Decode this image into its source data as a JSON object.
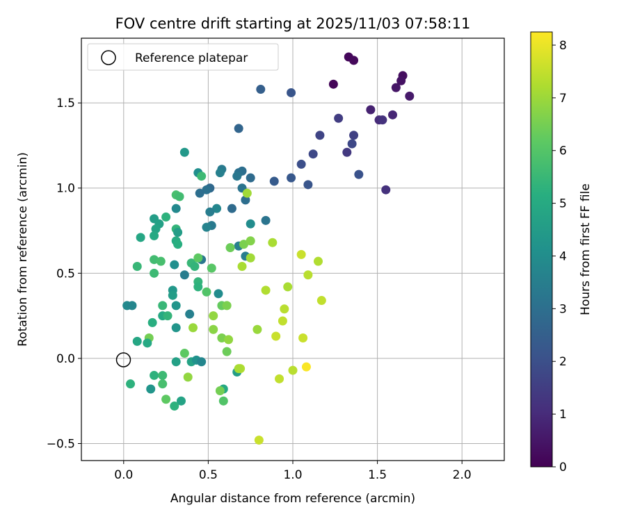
{
  "chart_data": {
    "type": "scatter",
    "title": "FOV centre drift starting at 2025/11/03 07:58:11",
    "xlabel": "Angular distance from reference (arcmin)",
    "ylabel": "Rotation from reference (arcmin)",
    "xlim": [
      -0.25,
      2.25
    ],
    "ylim": [
      -0.6,
      1.88
    ],
    "xticks": [
      0.0,
      0.5,
      1.0,
      1.5,
      2.0
    ],
    "xtick_labels": [
      "0.0",
      "0.5",
      "1.0",
      "1.5",
      "2.0"
    ],
    "yticks": [
      -0.5,
      0.0,
      0.5,
      1.0,
      1.5
    ],
    "ytick_labels": [
      "−0.5",
      "0.0",
      "0.5",
      "1.0",
      "1.5"
    ],
    "grid": true,
    "legend": {
      "location": "upper-left",
      "entries": [
        "Reference platepar"
      ]
    },
    "reference_point": {
      "x": 0.0,
      "y": 0.0
    },
    "colorbar": {
      "label": "Hours from first FF file",
      "colormap": "viridis",
      "range": [
        0,
        8.25
      ],
      "ticks": [
        0,
        1,
        2,
        3,
        4,
        5,
        6,
        7,
        8
      ],
      "tick_labels": [
        "0",
        "1",
        "2",
        "3",
        "4",
        "5",
        "6",
        "7",
        "8"
      ]
    },
    "points": [
      {
        "x": 1.33,
        "y": 1.77,
        "h": 0.15
      },
      {
        "x": 1.36,
        "y": 1.75,
        "h": 0.2
      },
      {
        "x": 1.24,
        "y": 1.61,
        "h": 0.1
      },
      {
        "x": 1.65,
        "y": 1.66,
        "h": 0.3
      },
      {
        "x": 1.64,
        "y": 1.63,
        "h": 0.4
      },
      {
        "x": 1.61,
        "y": 1.59,
        "h": 0.5
      },
      {
        "x": 1.69,
        "y": 1.54,
        "h": 0.6
      },
      {
        "x": 1.46,
        "y": 1.46,
        "h": 0.8
      },
      {
        "x": 1.59,
        "y": 1.43,
        "h": 0.9
      },
      {
        "x": 1.51,
        "y": 1.4,
        "h": 1.0
      },
      {
        "x": 1.53,
        "y": 1.4,
        "h": 1.2
      },
      {
        "x": 1.27,
        "y": 1.41,
        "h": 1.5
      },
      {
        "x": 1.36,
        "y": 1.31,
        "h": 1.6
      },
      {
        "x": 1.16,
        "y": 1.31,
        "h": 1.7
      },
      {
        "x": 1.35,
        "y": 1.26,
        "h": 1.8
      },
      {
        "x": 1.32,
        "y": 1.21,
        "h": 1.4
      },
      {
        "x": 1.12,
        "y": 1.2,
        "h": 1.8
      },
      {
        "x": 1.55,
        "y": 0.99,
        "h": 1.2
      },
      {
        "x": 1.39,
        "y": 1.08,
        "h": 2.1
      },
      {
        "x": 1.05,
        "y": 1.14,
        "h": 2.0
      },
      {
        "x": 1.09,
        "y": 1.02,
        "h": 2.2
      },
      {
        "x": 0.99,
        "y": 1.06,
        "h": 2.3
      },
      {
        "x": 0.89,
        "y": 1.04,
        "h": 2.4
      },
      {
        "x": 0.99,
        "y": 1.56,
        "h": 2.2
      },
      {
        "x": 0.81,
        "y": 1.58,
        "h": 2.5
      },
      {
        "x": 0.68,
        "y": 1.35,
        "h": 2.7
      },
      {
        "x": 0.75,
        "y": 1.06,
        "h": 2.9
      },
      {
        "x": 0.7,
        "y": 1.1,
        "h": 3.0
      },
      {
        "x": 0.68,
        "y": 1.09,
        "h": 3.1
      },
      {
        "x": 0.67,
        "y": 1.07,
        "h": 3.3
      },
      {
        "x": 0.7,
        "y": 1.0,
        "h": 3.2
      },
      {
        "x": 0.58,
        "y": 1.11,
        "h": 3.4
      },
      {
        "x": 0.57,
        "y": 1.09,
        "h": 3.6
      },
      {
        "x": 0.72,
        "y": 0.93,
        "h": 3.0
      },
      {
        "x": 0.64,
        "y": 0.88,
        "h": 2.9
      },
      {
        "x": 0.51,
        "y": 1.0,
        "h": 2.8
      },
      {
        "x": 0.49,
        "y": 0.99,
        "h": 3.1
      },
      {
        "x": 0.45,
        "y": 0.97,
        "h": 3.0
      },
      {
        "x": 0.84,
        "y": 0.81,
        "h": 3.2
      },
      {
        "x": 0.55,
        "y": 0.88,
        "h": 3.8
      },
      {
        "x": 0.51,
        "y": 0.86,
        "h": 3.5
      },
      {
        "x": 0.52,
        "y": 0.78,
        "h": 3.4
      },
      {
        "x": 0.49,
        "y": 0.77,
        "h": 3.7
      },
      {
        "x": 0.75,
        "y": 0.79,
        "h": 4.0
      },
      {
        "x": 0.68,
        "y": 0.66,
        "h": 3.6
      },
      {
        "x": 0.72,
        "y": 0.6,
        "h": 3.5
      },
      {
        "x": 0.46,
        "y": 0.58,
        "h": 3.3
      },
      {
        "x": 0.36,
        "y": 1.21,
        "h": 4.4
      },
      {
        "x": 0.44,
        "y": 1.09,
        "h": 4.1
      },
      {
        "x": 0.46,
        "y": 1.07,
        "h": 5.6
      },
      {
        "x": 0.31,
        "y": 0.88,
        "h": 3.9
      },
      {
        "x": 0.31,
        "y": 0.96,
        "h": 5.8
      },
      {
        "x": 0.33,
        "y": 0.95,
        "h": 5.7
      },
      {
        "x": 0.25,
        "y": 0.83,
        "h": 5.3
      },
      {
        "x": 0.18,
        "y": 0.82,
        "h": 4.6
      },
      {
        "x": 0.21,
        "y": 0.79,
        "h": 4.7
      },
      {
        "x": 0.19,
        "y": 0.76,
        "h": 4.8
      },
      {
        "x": 0.31,
        "y": 0.76,
        "h": 5.4
      },
      {
        "x": 0.32,
        "y": 0.74,
        "h": 4.6
      },
      {
        "x": 0.18,
        "y": 0.72,
        "h": 5.0
      },
      {
        "x": 0.1,
        "y": 0.71,
        "h": 4.9
      },
      {
        "x": 0.31,
        "y": 0.69,
        "h": 5.1
      },
      {
        "x": 0.32,
        "y": 0.67,
        "h": 5.2
      },
      {
        "x": 0.3,
        "y": 0.55,
        "h": 4.1
      },
      {
        "x": 0.36,
        "y": 0.49,
        "h": 3.5
      },
      {
        "x": 0.08,
        "y": 0.54,
        "h": 5.5
      },
      {
        "x": 0.18,
        "y": 0.58,
        "h": 5.7
      },
      {
        "x": 0.22,
        "y": 0.57,
        "h": 5.8
      },
      {
        "x": 0.4,
        "y": 0.56,
        "h": 5.5
      },
      {
        "x": 0.42,
        "y": 0.54,
        "h": 5.4
      },
      {
        "x": 0.44,
        "y": 0.59,
        "h": 6.2
      },
      {
        "x": 0.52,
        "y": 0.53,
        "h": 6.1
      },
      {
        "x": 0.63,
        "y": 0.65,
        "h": 6.4
      },
      {
        "x": 0.71,
        "y": 0.67,
        "h": 6.6
      },
      {
        "x": 0.75,
        "y": 0.69,
        "h": 6.7
      },
      {
        "x": 0.18,
        "y": 0.5,
        "h": 5.6
      },
      {
        "x": 0.44,
        "y": 0.45,
        "h": 5.4
      },
      {
        "x": 0.44,
        "y": 0.42,
        "h": 5.3
      },
      {
        "x": 0.29,
        "y": 0.4,
        "h": 4.4
      },
      {
        "x": 0.29,
        "y": 0.37,
        "h": 4.6
      },
      {
        "x": 0.49,
        "y": 0.39,
        "h": 6.0
      },
      {
        "x": 0.56,
        "y": 0.38,
        "h": 4.0
      },
      {
        "x": 0.58,
        "y": 0.31,
        "h": 6.3
      },
      {
        "x": 0.61,
        "y": 0.31,
        "h": 6.6
      },
      {
        "x": 0.02,
        "y": 0.31,
        "h": 3.9
      },
      {
        "x": 0.05,
        "y": 0.31,
        "h": 3.8
      },
      {
        "x": 0.31,
        "y": 0.31,
        "h": 4.3
      },
      {
        "x": 0.23,
        "y": 0.31,
        "h": 5.5
      },
      {
        "x": 0.23,
        "y": 0.25,
        "h": 5.0
      },
      {
        "x": 0.26,
        "y": 0.25,
        "h": 5.4
      },
      {
        "x": 0.39,
        "y": 0.26,
        "h": 3.6
      },
      {
        "x": 0.53,
        "y": 0.25,
        "h": 6.9
      },
      {
        "x": 0.17,
        "y": 0.21,
        "h": 5.2
      },
      {
        "x": 0.31,
        "y": 0.18,
        "h": 4.3
      },
      {
        "x": 0.41,
        "y": 0.18,
        "h": 7.0
      },
      {
        "x": 0.53,
        "y": 0.17,
        "h": 6.8
      },
      {
        "x": 0.58,
        "y": 0.12,
        "h": 6.6
      },
      {
        "x": 0.62,
        "y": 0.11,
        "h": 6.9
      },
      {
        "x": 0.15,
        "y": 0.12,
        "h": 6.5
      },
      {
        "x": 0.14,
        "y": 0.09,
        "h": 5.0
      },
      {
        "x": 0.08,
        "y": 0.1,
        "h": 4.9
      },
      {
        "x": 0.61,
        "y": 0.04,
        "h": 6.4
      },
      {
        "x": 0.36,
        "y": 0.03,
        "h": 6.2
      },
      {
        "x": 0.4,
        "y": -0.02,
        "h": 4.8
      },
      {
        "x": 0.43,
        "y": -0.01,
        "h": 4.2
      },
      {
        "x": 0.46,
        "y": -0.02,
        "h": 3.8
      },
      {
        "x": 0.31,
        "y": -0.02,
        "h": 4.7
      },
      {
        "x": 0.67,
        "y": -0.08,
        "h": 4.6
      },
      {
        "x": 0.69,
        "y": -0.06,
        "h": 7.3
      },
      {
        "x": 0.68,
        "y": -0.06,
        "h": 7.2
      },
      {
        "x": 0.18,
        "y": -0.1,
        "h": 5.3
      },
      {
        "x": 0.23,
        "y": -0.1,
        "h": 5.6
      },
      {
        "x": 0.38,
        "y": -0.11,
        "h": 6.9
      },
      {
        "x": 0.23,
        "y": -0.15,
        "h": 5.8
      },
      {
        "x": 0.04,
        "y": -0.15,
        "h": 5.3
      },
      {
        "x": 0.16,
        "y": -0.18,
        "h": 4.3
      },
      {
        "x": 0.59,
        "y": -0.18,
        "h": 5.0
      },
      {
        "x": 0.57,
        "y": -0.19,
        "h": 6.5
      },
      {
        "x": 0.59,
        "y": -0.25,
        "h": 6.0
      },
      {
        "x": 0.25,
        "y": -0.24,
        "h": 6.2
      },
      {
        "x": 0.34,
        "y": -0.25,
        "h": 4.8
      },
      {
        "x": 0.3,
        "y": -0.28,
        "h": 5.3
      },
      {
        "x": 0.79,
        "y": 0.17,
        "h": 7.0
      },
      {
        "x": 0.84,
        "y": 0.4,
        "h": 7.3
      },
      {
        "x": 0.88,
        "y": 0.68,
        "h": 7.2
      },
      {
        "x": 0.75,
        "y": 0.59,
        "h": 7.1
      },
      {
        "x": 0.7,
        "y": 0.54,
        "h": 7.2
      },
      {
        "x": 0.73,
        "y": 0.97,
        "h": 7.1
      },
      {
        "x": 0.97,
        "y": 0.42,
        "h": 7.2
      },
      {
        "x": 1.05,
        "y": 0.61,
        "h": 7.6
      },
      {
        "x": 1.09,
        "y": 0.49,
        "h": 7.4
      },
      {
        "x": 1.15,
        "y": 0.57,
        "h": 7.3
      },
      {
        "x": 1.17,
        "y": 0.34,
        "h": 7.5
      },
      {
        "x": 0.95,
        "y": 0.29,
        "h": 7.4
      },
      {
        "x": 0.94,
        "y": 0.22,
        "h": 7.5
      },
      {
        "x": 0.9,
        "y": 0.13,
        "h": 7.6
      },
      {
        "x": 1.06,
        "y": 0.12,
        "h": 7.6
      },
      {
        "x": 1.0,
        "y": -0.07,
        "h": 7.4
      },
      {
        "x": 0.92,
        "y": -0.12,
        "h": 7.5
      },
      {
        "x": 1.08,
        "y": -0.05,
        "h": 8.2
      },
      {
        "x": 0.8,
        "y": -0.48,
        "h": 7.6
      }
    ]
  }
}
